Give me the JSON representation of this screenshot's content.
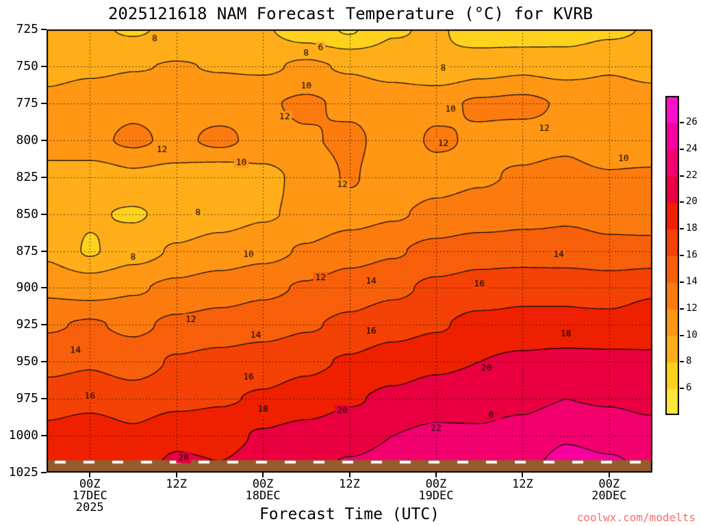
{
  "title": "2025121618 NAM Forecast Temperature (°C) for KVRB",
  "xlabel": "Forecast Time (UTC)",
  "watermark": "coolwx.com/modelts",
  "chart_data": {
    "type": "heatmap",
    "title": "2025121618 NAM Forecast Temperature (°C) for KVRB",
    "xlabel": "Forecast Time (UTC)",
    "ylabel": "",
    "x_units": "forecast hours from 2025-12-16 18Z",
    "x_hours": [
      0,
      6,
      12,
      18,
      24,
      30,
      36,
      42,
      48,
      54,
      60,
      66,
      72,
      78,
      84
    ],
    "pressures": [
      725,
      750,
      775,
      800,
      825,
      850,
      875,
      900,
      925,
      950,
      975,
      1000,
      1025
    ],
    "values": [
      [
        8.6,
        8.3,
        7.8,
        8.4,
        8.5,
        8.2,
        7.0,
        5.8,
        7.8,
        8.3,
        6.8,
        6.6,
        7.0,
        7.6,
        8.2
      ],
      [
        9.2,
        9.6,
        9.9,
        10.1,
        9.9,
        9.7,
        10.3,
        9.8,
        9.2,
        8.2,
        9.2,
        9.6,
        9.2,
        9.8,
        9.4
      ],
      [
        10.6,
        11.2,
        11.6,
        11.4,
        11.2,
        11.8,
        12.3,
        11.6,
        11.2,
        11.6,
        12.2,
        12.4,
        11.8,
        11.2,
        10.8
      ],
      [
        10.8,
        11.6,
        12.3,
        11.6,
        12.4,
        11.4,
        11.8,
        12.4,
        11.2,
        12.2,
        11.8,
        11.4,
        11.6,
        10.4,
        10.2
      ],
      [
        9.4,
        8.8,
        9.6,
        9.2,
        8.6,
        9.4,
        10.6,
        12.2,
        10.8,
        11.4,
        11.8,
        12.2,
        12.6,
        12.2,
        12.4
      ],
      [
        9.0,
        8.2,
        7.8,
        8.6,
        9.2,
        9.8,
        10.4,
        11.2,
        11.8,
        12.4,
        12.8,
        13.4,
        13.8,
        13.6,
        13.2
      ],
      [
        9.6,
        7.8,
        9.2,
        10.2,
        10.8,
        11.4,
        12.2,
        13.2,
        13.8,
        14.6,
        15.2,
        15.0,
        14.6,
        14.3,
        14.5
      ],
      [
        11.6,
        11.2,
        11.8,
        12.4,
        13.0,
        13.6,
        14.2,
        15.0,
        15.6,
        16.4,
        16.8,
        17.4,
        17.8,
        17.4,
        17.8
      ],
      [
        13.8,
        14.2,
        13.6,
        14.4,
        14.8,
        15.2,
        15.8,
        16.4,
        17.2,
        17.8,
        18.6,
        18.6,
        18.2,
        18.4,
        18.8
      ],
      [
        15.4,
        15.8,
        15.2,
        16.2,
        16.6,
        17.0,
        17.6,
        18.2,
        19.0,
        19.6,
        20.0,
        20.4,
        20.8,
        20.6,
        20.4
      ],
      [
        17.0,
        17.4,
        16.8,
        17.4,
        17.8,
        18.2,
        18.8,
        19.8,
        20.4,
        21.0,
        21.4,
        21.6,
        22.0,
        21.8,
        21.4
      ],
      [
        18.6,
        19.2,
        18.4,
        19.6,
        19.4,
        20.2,
        20.8,
        21.4,
        22.0,
        22.4,
        22.2,
        22.6,
        23.8,
        23.4,
        22.8
      ],
      [
        19.4,
        20.2,
        19.2,
        20.6,
        20.2,
        21.0,
        21.6,
        22.4,
        22.8,
        23.2,
        22.8,
        23.4,
        25.2,
        24.6,
        23.6
      ]
    ],
    "contour_levels": [
      6,
      8,
      10,
      12,
      14,
      16,
      18,
      20,
      22,
      24,
      26
    ],
    "contour_line_levels": [
      6,
      8,
      10,
      12,
      14,
      16,
      18,
      20,
      22,
      24
    ],
    "band_colors": [
      "#ffe73c",
      "#ffd21e",
      "#ffae19",
      "#ff9614",
      "#fb7b0f",
      "#f85f0a",
      "#f44105",
      "#ee2000",
      "#ea0040",
      "#f2006e",
      "#f800a0",
      "#ff10c8"
    ],
    "surface": {
      "top_hpa": 1016.5,
      "color": "#975b2b"
    },
    "y_ticks": [
      725,
      750,
      775,
      800,
      825,
      850,
      875,
      900,
      925,
      950,
      975,
      1000,
      1025
    ],
    "x_ticks": [
      {
        "hours": 6,
        "label": "00Z",
        "date": "17DEC",
        "year": "2025"
      },
      {
        "hours": 18,
        "label": "12Z"
      },
      {
        "hours": 30,
        "label": "00Z",
        "date": "18DEC"
      },
      {
        "hours": 42,
        "label": "12Z"
      },
      {
        "hours": 54,
        "label": "00Z",
        "date": "19DEC"
      },
      {
        "hours": 66,
        "label": "12Z"
      },
      {
        "hours": 78,
        "label": "00Z",
        "date": "20DEC"
      }
    ],
    "colorbar": {
      "ticks": [
        6,
        8,
        10,
        12,
        14,
        16,
        18,
        20,
        22,
        24,
        26
      ]
    },
    "contour_labels": [
      {
        "t": 15,
        "p": 731,
        "text": "8"
      },
      {
        "t": 38,
        "p": 737,
        "text": "6"
      },
      {
        "t": 36,
        "p": 741,
        "text": "8"
      },
      {
        "t": 55,
        "p": 751,
        "text": "8"
      },
      {
        "t": 36,
        "p": 763,
        "text": "10"
      },
      {
        "t": 56,
        "p": 779,
        "text": "10"
      },
      {
        "t": 33,
        "p": 784,
        "text": "12"
      },
      {
        "t": 69,
        "p": 792,
        "text": "12"
      },
      {
        "t": 55,
        "p": 802,
        "text": "12"
      },
      {
        "t": 16,
        "p": 806,
        "text": "12"
      },
      {
        "t": 27,
        "p": 815,
        "text": "10"
      },
      {
        "t": 80,
        "p": 812,
        "text": "10"
      },
      {
        "t": 41,
        "p": 830,
        "text": "12"
      },
      {
        "t": 21,
        "p": 849,
        "text": "8"
      },
      {
        "t": 12,
        "p": 879,
        "text": "8"
      },
      {
        "t": 28,
        "p": 877,
        "text": "10"
      },
      {
        "t": 71,
        "p": 877,
        "text": "14"
      },
      {
        "t": 38,
        "p": 893,
        "text": "12"
      },
      {
        "t": 45,
        "p": 895,
        "text": "14"
      },
      {
        "t": 60,
        "p": 897,
        "text": "16"
      },
      {
        "t": 20,
        "p": 921,
        "text": "12"
      },
      {
        "t": 45,
        "p": 929,
        "text": "16"
      },
      {
        "t": 72,
        "p": 931,
        "text": "18"
      },
      {
        "t": 4,
        "p": 942,
        "text": "14"
      },
      {
        "t": 29,
        "p": 932,
        "text": "14"
      },
      {
        "t": 28,
        "p": 960,
        "text": "16"
      },
      {
        "t": 61,
        "p": 954,
        "text": "20"
      },
      {
        "t": 6,
        "p": 973,
        "text": "16"
      },
      {
        "t": 30,
        "p": 982,
        "text": "18"
      },
      {
        "t": 41,
        "p": 983,
        "text": "20"
      },
      {
        "t": 54,
        "p": 995,
        "text": "22"
      },
      {
        "t": 62,
        "p": 986,
        "text": "0⁻"
      },
      {
        "t": 19,
        "p": 1015,
        "text": "20"
      }
    ]
  }
}
